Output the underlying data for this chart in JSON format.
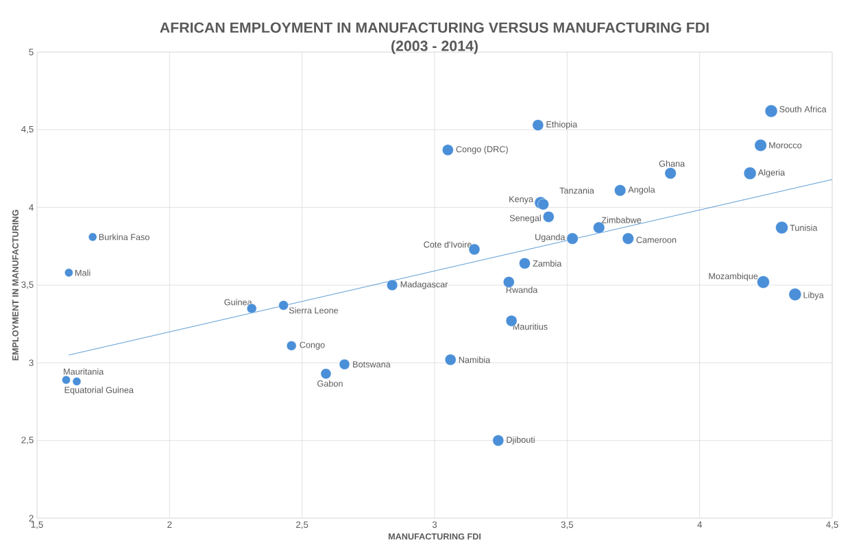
{
  "chart_data": {
    "type": "bubble",
    "title": "AFRICAN EMPLOYMENT IN MANUFACTURING VERSUS MANUFACTURING FDI",
    "subtitle": "(2003 - 2014)",
    "xlabel": "MANUFACTURING FDI",
    "ylabel": "EMPLOYMENT IN MANUFACTURING",
    "color": "#4a8fd8",
    "grid": true,
    "xlim": [
      1.5,
      4.5
    ],
    "xticks": [
      {
        "value": 1.5,
        "label": "1,5"
      },
      2,
      {
        "value": 2.5,
        "label": "2,5"
      },
      3,
      {
        "value": 3.5,
        "label": "3,5"
      },
      4,
      {
        "value": 4.5,
        "label": "4,5"
      }
    ],
    "ylim": [
      2,
      5
    ],
    "yticks": [
      2,
      {
        "value": 2.5,
        "label": "2,5"
      },
      3,
      {
        "value": 3.5,
        "label": "3,5"
      },
      4,
      {
        "value": 4.5,
        "label": "4,5"
      },
      5
    ],
    "series": [
      {
        "name": "South Africa",
        "x": [
          4.27
        ],
        "values": [
          4.62
        ],
        "sizes": [
          1
        ]
      },
      {
        "name": "Ethiopia",
        "x": [
          3.39
        ],
        "values": [
          4.53
        ],
        "sizes": [
          0.8
        ]
      },
      {
        "name": "Morocco",
        "x": [
          4.23
        ],
        "values": [
          4.4
        ],
        "sizes": [
          0.95
        ]
      },
      {
        "name": "Congo (DRC)",
        "x": [
          3.05
        ],
        "values": [
          4.37
        ],
        "sizes": [
          0.8
        ]
      },
      {
        "name": "Ghana",
        "x": [
          3.89
        ],
        "values": [
          4.22
        ],
        "sizes": [
          0.85
        ]
      },
      {
        "name": "Algeria",
        "x": [
          4.19
        ],
        "values": [
          4.22
        ],
        "sizes": [
          1
        ]
      },
      {
        "name": "Angola",
        "x": [
          3.7
        ],
        "values": [
          4.11
        ],
        "sizes": [
          0.85
        ]
      },
      {
        "name": "Kenya",
        "x": [
          3.4
        ],
        "values": [
          4.03
        ],
        "sizes": [
          0.95
        ]
      },
      {
        "name": "Tanzania",
        "x": [
          3.41
        ],
        "values": [
          4.02
        ],
        "sizes": [
          0.8
        ]
      },
      {
        "name": "Senegal",
        "x": [
          3.43
        ],
        "values": [
          3.94
        ],
        "sizes": [
          0.8
        ]
      },
      {
        "name": "Zimbabwe",
        "x": [
          3.62
        ],
        "values": [
          3.87
        ],
        "sizes": [
          0.85
        ]
      },
      {
        "name": "Tunisia",
        "x": [
          4.31
        ],
        "values": [
          3.87
        ],
        "sizes": [
          1
        ]
      },
      {
        "name": "Uganda",
        "x": [
          3.52
        ],
        "values": [
          3.8
        ],
        "sizes": [
          0.85
        ]
      },
      {
        "name": "Cameroon",
        "x": [
          3.73
        ],
        "values": [
          3.8
        ],
        "sizes": [
          0.85
        ]
      },
      {
        "name": "Burkina Faso",
        "x": [
          1.71
        ],
        "values": [
          3.81
        ],
        "sizes": [
          0.45
        ]
      },
      {
        "name": "Cote d'Ivoire",
        "x": [
          3.15
        ],
        "values": [
          3.73
        ],
        "sizes": [
          0.8
        ]
      },
      {
        "name": "Zambia",
        "x": [
          3.34
        ],
        "values": [
          3.64
        ],
        "sizes": [
          0.8
        ]
      },
      {
        "name": "Mali",
        "x": [
          1.62
        ],
        "values": [
          3.58
        ],
        "sizes": [
          0.45
        ]
      },
      {
        "name": "Madagascar",
        "x": [
          2.84
        ],
        "values": [
          3.5
        ],
        "sizes": [
          0.75
        ]
      },
      {
        "name": "Rwanda",
        "x": [
          3.28
        ],
        "values": [
          3.52
        ],
        "sizes": [
          0.8
        ]
      },
      {
        "name": "Mozambique",
        "x": [
          4.24
        ],
        "values": [
          3.52
        ],
        "sizes": [
          1
        ]
      },
      {
        "name": "Libya",
        "x": [
          4.36
        ],
        "values": [
          3.44
        ],
        "sizes": [
          1
        ]
      },
      {
        "name": "Guinea",
        "x": [
          2.31
        ],
        "values": [
          3.35
        ],
        "sizes": [
          0.6
        ]
      },
      {
        "name": "Sierra Leone",
        "x": [
          2.43
        ],
        "values": [
          3.37
        ],
        "sizes": [
          0.6
        ]
      },
      {
        "name": "Mauritius",
        "x": [
          3.29
        ],
        "values": [
          3.27
        ],
        "sizes": [
          0.8
        ]
      },
      {
        "name": "Congo",
        "x": [
          2.46
        ],
        "values": [
          3.11
        ],
        "sizes": [
          0.6
        ]
      },
      {
        "name": "Botswana",
        "x": [
          2.66
        ],
        "values": [
          2.99
        ],
        "sizes": [
          0.7
        ]
      },
      {
        "name": "Namibia",
        "x": [
          3.06
        ],
        "values": [
          3.02
        ],
        "sizes": [
          0.8
        ]
      },
      {
        "name": "Gabon",
        "x": [
          2.59
        ],
        "values": [
          2.93
        ],
        "sizes": [
          0.7
        ]
      },
      {
        "name": "Mauritania",
        "x": [
          1.61
        ],
        "values": [
          2.89
        ],
        "sizes": [
          0.45
        ]
      },
      {
        "name": "Equatorial Guinea",
        "x": [
          1.65
        ],
        "values": [
          2.88
        ],
        "sizes": [
          0.45
        ]
      },
      {
        "name": "Djibouti",
        "x": [
          3.24
        ],
        "values": [
          2.5
        ],
        "sizes": [
          0.8
        ]
      },
      {
        "type": "line",
        "x": [
          1.62,
          4.5
        ],
        "values": [
          3.05,
          4.18
        ],
        "color": "#5b9bd5",
        "marker": "none"
      }
    ]
  }
}
